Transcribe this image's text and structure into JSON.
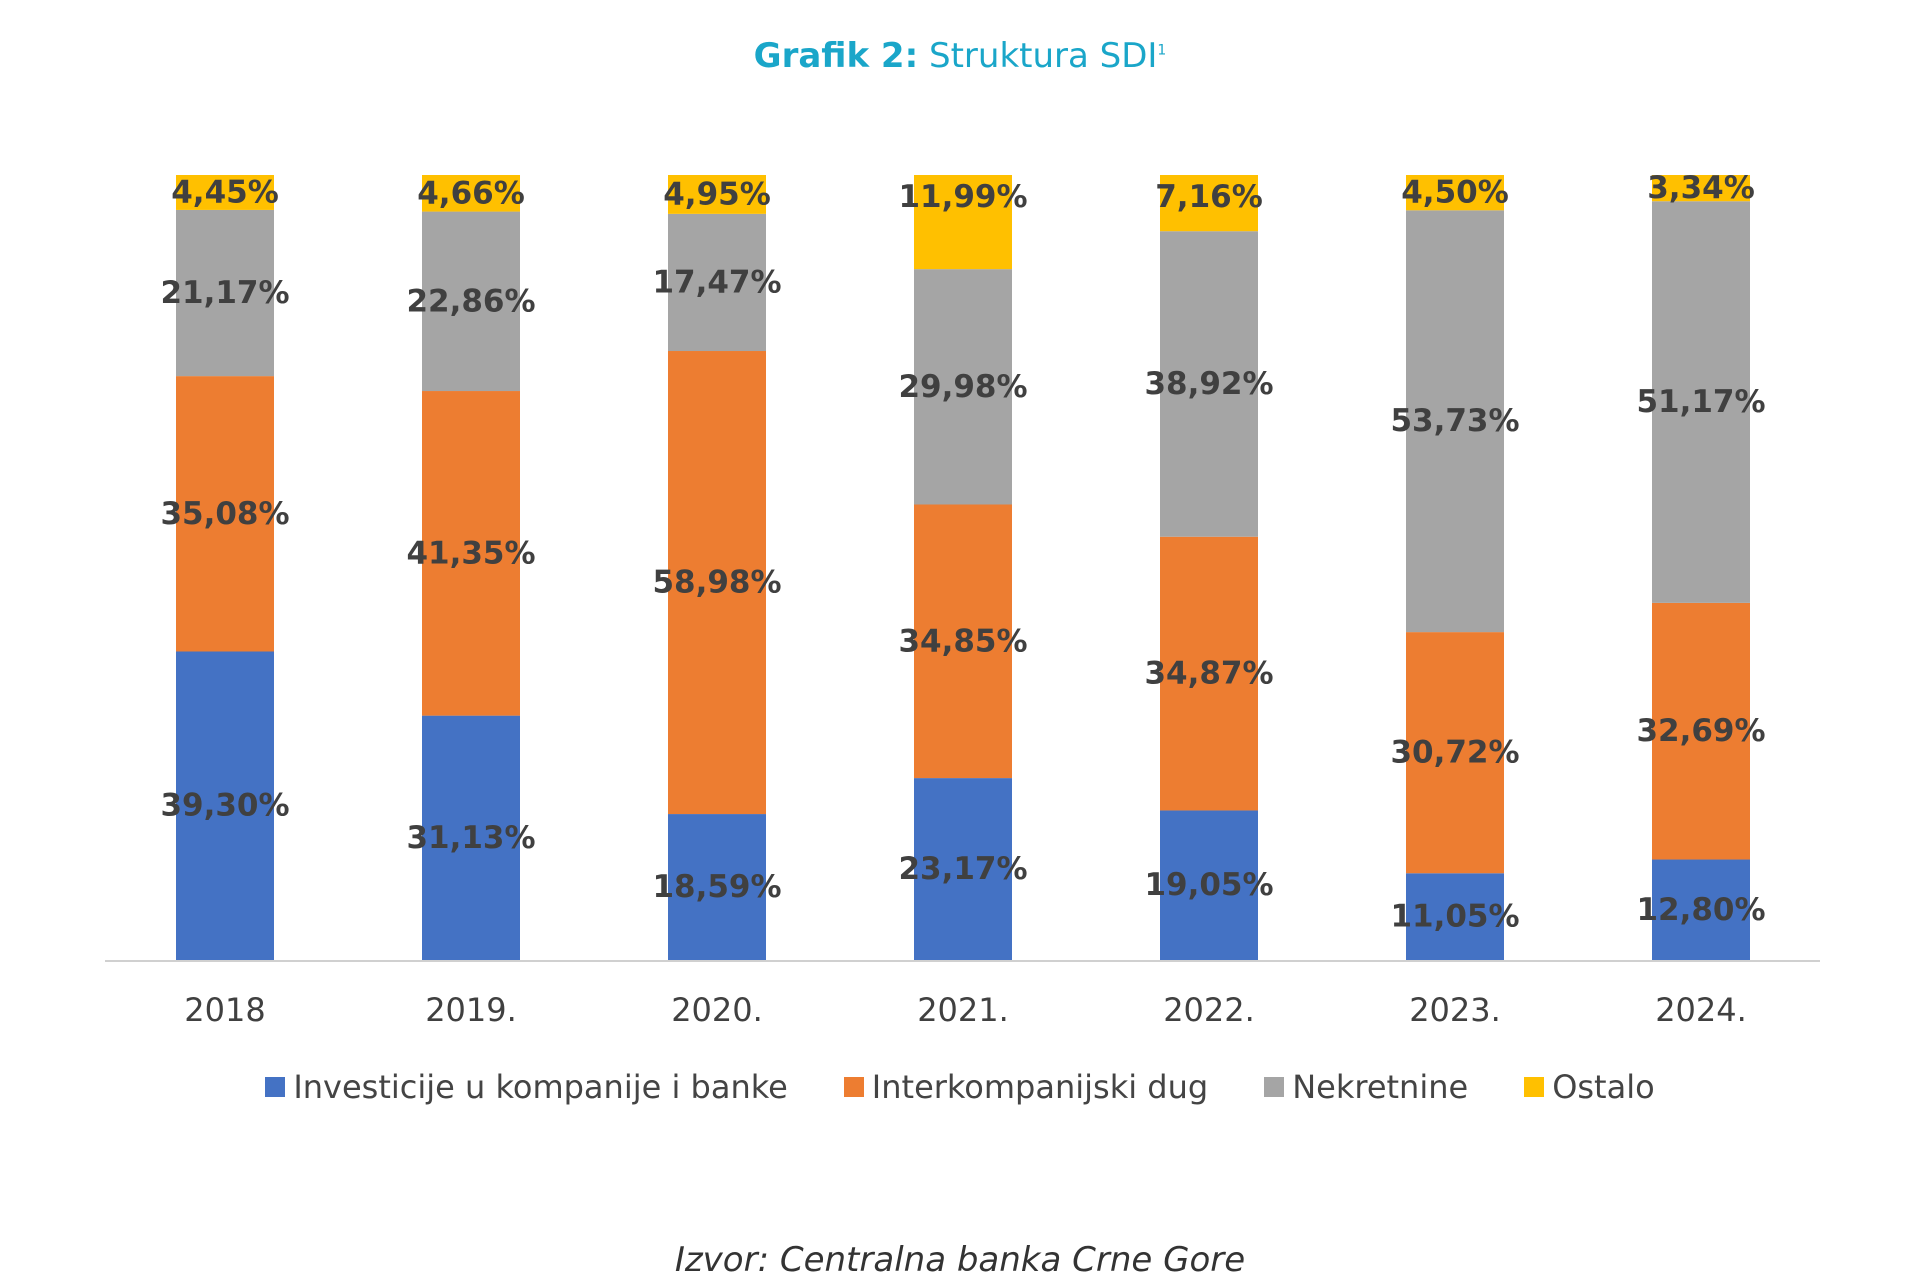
{
  "title": {
    "bold": "Grafik 2:",
    "rest": "Struktura SDI",
    "sup": "1"
  },
  "source": "Izvor: Centralna banka Crne Gore",
  "chart_data": {
    "type": "bar",
    "stacked": true,
    "percent_stacked": true,
    "categories": [
      "2018",
      "2019.",
      "2020.",
      "2021.",
      "2022.",
      "2023.",
      "2024."
    ],
    "series": [
      {
        "name": "Investicije u kompanije i banke",
        "color": "#4472c4",
        "values": [
          39.3,
          31.13,
          18.59,
          23.17,
          19.05,
          11.05,
          12.8
        ],
        "labels": [
          "39,30%",
          "31,13%",
          "18,59%",
          "23,17%",
          "19,05%",
          "11,05%",
          "12,80%"
        ]
      },
      {
        "name": "Interkompanijski dug",
        "color": "#ed7d31",
        "values": [
          35.08,
          41.35,
          58.98,
          34.85,
          34.87,
          30.72,
          32.69
        ],
        "labels": [
          "35,08%",
          "41,35%",
          "58,98%",
          "34,85%",
          "34,87%",
          "30,72%",
          "32,69%"
        ]
      },
      {
        "name": "Nekretnine",
        "color": "#a5a5a5",
        "values": [
          21.17,
          22.86,
          17.47,
          29.98,
          38.92,
          53.73,
          51.17
        ],
        "labels": [
          "21,17%",
          "22,86%",
          "17,47%",
          "29,98%",
          "38,92%",
          "53,73%",
          "51,17%"
        ]
      },
      {
        "name": "Ostalo",
        "color": "#ffc000",
        "values": [
          4.45,
          4.66,
          4.95,
          11.99,
          7.16,
          4.5,
          3.34
        ],
        "labels": [
          "4,45%",
          "4,66%",
          "4,95%",
          "11,99%",
          "7,16%",
          "4,50%",
          "3,34%"
        ]
      }
    ],
    "legend_position": "bottom",
    "grid": false
  }
}
